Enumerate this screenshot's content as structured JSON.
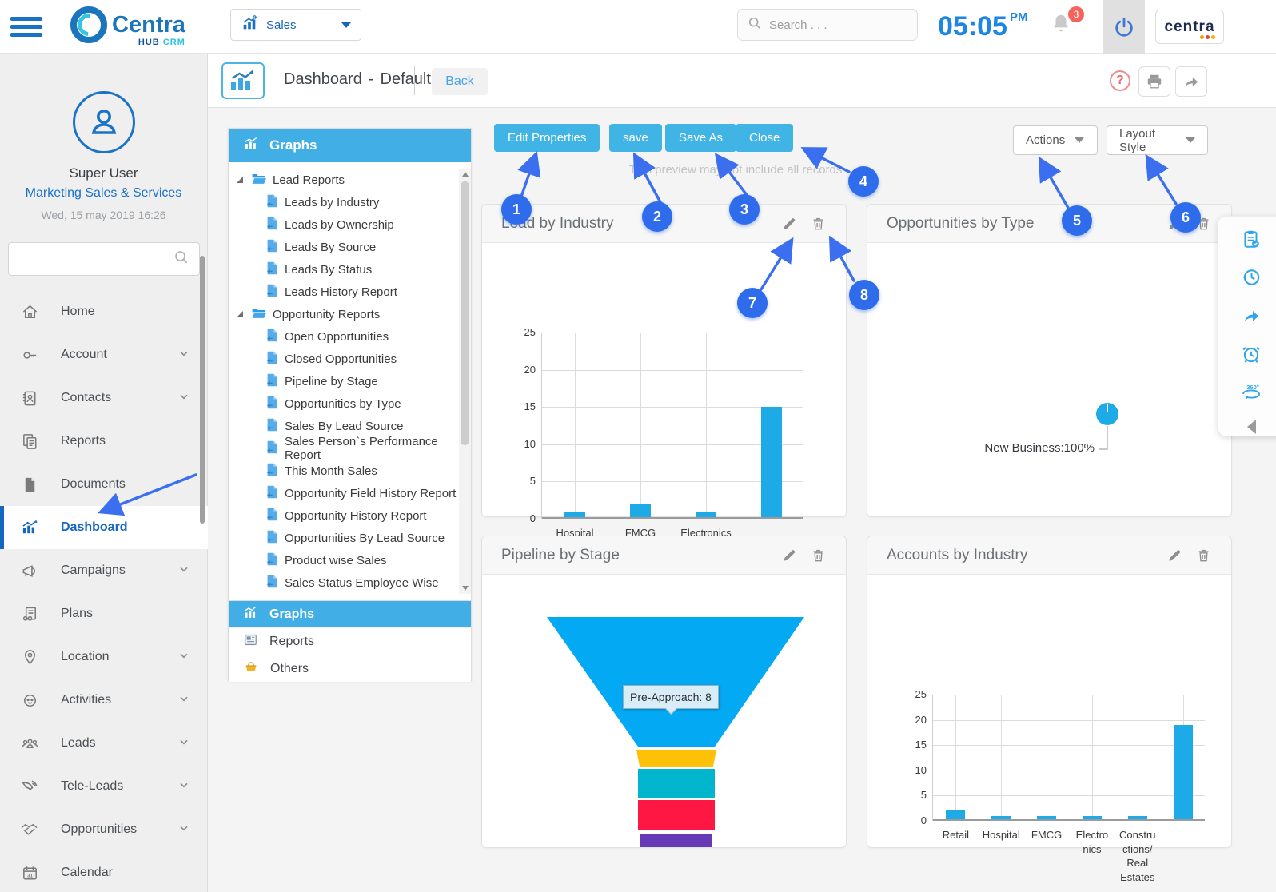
{
  "header": {
    "logo_text": "Centra",
    "logo_sub1": "HUB",
    "logo_sub2": "CRM",
    "module": "Sales",
    "search_placeholder": "Search . . .",
    "time": "05:05",
    "meridiem": "PM",
    "notifications": "3",
    "brand": "centra"
  },
  "sidebar": {
    "user_name": "Super User",
    "user_role": "Marketing Sales & Services",
    "datetime": "Wed, 15 may 2019 16:26",
    "items": [
      {
        "label": "Home",
        "icon": "home-icon",
        "chevron": false,
        "active": false
      },
      {
        "label": "Account",
        "icon": "account-icon",
        "chevron": true,
        "active": false
      },
      {
        "label": "Contacts",
        "icon": "contacts-icon",
        "chevron": true,
        "active": false
      },
      {
        "label": "Reports",
        "icon": "reports-icon",
        "chevron": false,
        "active": false
      },
      {
        "label": "Documents",
        "icon": "documents-icon",
        "chevron": false,
        "active": false
      },
      {
        "label": "Dashboard",
        "icon": "dashboard-icon",
        "chevron": false,
        "active": true
      },
      {
        "label": "Campaigns",
        "icon": "campaigns-icon",
        "chevron": true,
        "active": false
      },
      {
        "label": "Plans",
        "icon": "plans-icon",
        "chevron": false,
        "active": false
      },
      {
        "label": "Location",
        "icon": "location-icon",
        "chevron": true,
        "active": false
      },
      {
        "label": "Activities",
        "icon": "activities-icon",
        "chevron": true,
        "active": false
      },
      {
        "label": "Leads",
        "icon": "leads-icon",
        "chevron": true,
        "active": false
      },
      {
        "label": "Tele-Leads",
        "icon": "tele-leads-icon",
        "chevron": true,
        "active": false
      },
      {
        "label": "Opportunities",
        "icon": "opportunities-icon",
        "chevron": true,
        "active": false
      },
      {
        "label": "Calendar",
        "icon": "calendar-icon",
        "chevron": false,
        "active": false
      }
    ]
  },
  "page": {
    "title": "Dashboard",
    "separator": "-",
    "subtitle": "Default",
    "back_label": "Back",
    "help_glyph": "?"
  },
  "panel": {
    "title": "Graphs",
    "tree": [
      {
        "folder": "Lead Reports",
        "children": [
          "Leads by Industry",
          "Leads by Ownership",
          "Leads By Source",
          "Leads By Status",
          "Leads History Report"
        ]
      },
      {
        "folder": "Opportunity Reports",
        "children": [
          "Open Opportunities",
          "Closed Opportunities",
          "Pipeline by Stage",
          "Opportunities by Type",
          "Sales By Lead Source",
          "Sales Person`s Performance Report",
          "This Month Sales",
          "Opportunity Field History Report",
          "Opportunity History Report",
          "Opportunities By Lead Source",
          "Product wise Sales",
          "Sales Status Employee Wise"
        ]
      }
    ],
    "tabs": [
      {
        "label": "Graphs",
        "icon": "graphs-icon",
        "active": true
      },
      {
        "label": "Reports",
        "icon": "reports-tab-icon",
        "active": false
      },
      {
        "label": "Others",
        "icon": "others-icon",
        "active": false
      }
    ]
  },
  "toolbar": {
    "buttons": [
      "Edit Properties",
      "save",
      "Save As",
      "Close"
    ],
    "actions_label": "Actions",
    "layout_style_label": "Layout Style",
    "preview_note": "This preview may not include all records"
  },
  "annotations": [
    "1",
    "2",
    "3",
    "4",
    "5",
    "6",
    "7",
    "8"
  ],
  "colors": {
    "accent_blue": "#41b4e6",
    "panel_blue": "#41aee6",
    "annotation_blue": "#2f6ceb",
    "bar_blue": "#1eaae7",
    "active_nav_blue": "#1566c0",
    "time_blue": "#1e86e0",
    "badge_red": "#f4645d"
  },
  "chart_data": [
    {
      "type": "bar",
      "title": "Lead by Industry",
      "categories": [
        "Hospital",
        "FMCG",
        "Electronics",
        ""
      ],
      "values": [
        1,
        2,
        1,
        15
      ],
      "ylim": [
        0,
        25
      ],
      "yticks": [
        0,
        5,
        10,
        15,
        20,
        25
      ],
      "grid": true,
      "bar_color": "#1eaae7"
    },
    {
      "type": "pie",
      "title": "Opportunities by Type",
      "slices": [
        {
          "label": "New Business",
          "pct": 100,
          "display": "New Business:100%"
        }
      ],
      "color": "#1eaae7"
    },
    {
      "type": "funnel",
      "title": "Pipeline by Stage",
      "tooltip": "Pre-Approach: 8",
      "segments": [
        {
          "label": "Pre-Approach",
          "value": 8,
          "color": "#04a9f4"
        },
        {
          "label": "",
          "color": "#ffc107"
        },
        {
          "label": "",
          "color": "#00b5cc"
        },
        {
          "label": "",
          "color": "#ff1744"
        },
        {
          "label": "",
          "color": "#6639b7"
        }
      ]
    },
    {
      "type": "bar",
      "title": "Accounts by Industry",
      "categories": [
        "Retail",
        "Hospital",
        "FMCG",
        "Electro\nnics",
        "Constru\nctions/\nReal\nEstates",
        ""
      ],
      "values": [
        2,
        1,
        1,
        1,
        1,
        19
      ],
      "ylim": [
        0,
        25
      ],
      "yticks": [
        0,
        5,
        10,
        15,
        20,
        25
      ],
      "grid": true,
      "bar_color": "#1eaae7"
    }
  ]
}
